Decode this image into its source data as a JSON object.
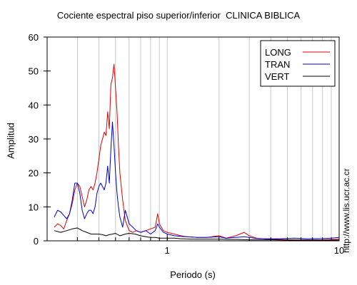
{
  "chart_data": {
    "type": "line",
    "title": "Cociente espectral piso superior/inferior  CLINICA BIBLICA",
    "xlabel": "Periodo (s)",
    "ylabel": "Amplitud",
    "x_scale": "log",
    "xlim": [
      0.2,
      10
    ],
    "ylim": [
      0,
      60
    ],
    "x_ticks": [
      1,
      10
    ],
    "x_tick_labels": [
      "1",
      "10"
    ],
    "y_ticks": [
      0,
      10,
      20,
      30,
      40,
      50,
      60
    ],
    "grid": true,
    "legend_position": "top-right",
    "series": [
      {
        "name": "LONG",
        "color": "#e00000",
        "x": [
          0.22,
          0.23,
          0.24,
          0.25,
          0.26,
          0.27,
          0.28,
          0.29,
          0.3,
          0.31,
          0.32,
          0.33,
          0.34,
          0.35,
          0.36,
          0.37,
          0.38,
          0.39,
          0.4,
          0.41,
          0.42,
          0.43,
          0.44,
          0.45,
          0.46,
          0.47,
          0.48,
          0.49,
          0.5,
          0.51,
          0.52,
          0.53,
          0.55,
          0.57,
          0.6,
          0.63,
          0.66,
          0.7,
          0.75,
          0.8,
          0.85,
          0.88,
          0.9,
          0.95,
          1.0,
          1.1,
          1.2,
          1.3,
          1.5,
          1.7,
          2.0,
          2.2,
          2.5,
          2.8,
          3.0,
          3.3,
          3.8,
          4.5,
          5.5,
          6.5,
          8.0,
          9.0,
          10.0
        ],
        "y": [
          4,
          5,
          4.5,
          3.5,
          6,
          8,
          11,
          15,
          17,
          16,
          13,
          10,
          12,
          15,
          16,
          15,
          17,
          20,
          24,
          28,
          30,
          32,
          31,
          38,
          33,
          46,
          48,
          52,
          45,
          38,
          28,
          20,
          12,
          6,
          3,
          2.5,
          3,
          2.5,
          3,
          3.5,
          4,
          8,
          5,
          3,
          2.5,
          2,
          1.5,
          1.2,
          1,
          1,
          1.5,
          0.8,
          1.5,
          2.5,
          1.5,
          0.8,
          0.5,
          0.4,
          0.3,
          0.3,
          0.3,
          0.4,
          0.5
        ]
      },
      {
        "name": "TRAN",
        "color": "#0000d0",
        "x": [
          0.22,
          0.23,
          0.24,
          0.25,
          0.26,
          0.27,
          0.28,
          0.29,
          0.3,
          0.31,
          0.32,
          0.33,
          0.34,
          0.35,
          0.36,
          0.37,
          0.38,
          0.39,
          0.4,
          0.41,
          0.42,
          0.43,
          0.44,
          0.45,
          0.46,
          0.47,
          0.48,
          0.49,
          0.5,
          0.51,
          0.52,
          0.53,
          0.55,
          0.57,
          0.6,
          0.63,
          0.66,
          0.7,
          0.75,
          0.8,
          0.85,
          0.88,
          0.9,
          0.95,
          1.0,
          1.1,
          1.2,
          1.3,
          1.5,
          1.7,
          2.0,
          2.2,
          2.5,
          2.8,
          3.0,
          3.3,
          3.8,
          4.5,
          5.5,
          6.5,
          8.0,
          9.0,
          10.0
        ],
        "y": [
          7,
          9,
          8.5,
          7.5,
          6.5,
          8,
          12,
          17,
          17,
          14,
          9,
          6.5,
          8,
          9,
          9,
          8,
          10,
          14,
          16,
          17,
          16,
          15,
          17,
          22,
          17,
          27,
          35,
          28,
          20,
          14,
          10,
          7,
          4,
          9,
          5,
          4,
          3,
          2.5,
          3,
          2,
          3,
          5,
          4,
          2.5,
          2,
          1.5,
          1.3,
          1.2,
          1,
          1,
          1.2,
          0.8,
          1,
          1.2,
          1,
          0.7,
          0.6,
          0.6,
          0.8,
          0.6,
          0.7,
          0.8,
          1
        ]
      },
      {
        "name": "VERT",
        "color": "#000000",
        "x": [
          0.22,
          0.24,
          0.26,
          0.28,
          0.3,
          0.32,
          0.34,
          0.36,
          0.38,
          0.4,
          0.42,
          0.44,
          0.46,
          0.48,
          0.5,
          0.53,
          0.57,
          0.6,
          0.65,
          0.7,
          0.75,
          0.8,
          0.85,
          0.9,
          1.0,
          1.1,
          1.2,
          1.4,
          1.6,
          1.8,
          2.0,
          2.3,
          2.6,
          3.0,
          3.5,
          4.0,
          5.0,
          6.0,
          7.0,
          8.0,
          9.0,
          10.0
        ],
        "y": [
          3,
          2.5,
          3,
          3.5,
          3.8,
          3,
          2.5,
          2,
          2,
          2,
          1.8,
          1.5,
          1.8,
          2,
          2.2,
          1.5,
          2,
          2.2,
          2,
          1.5,
          1.2,
          1,
          1,
          0.8,
          0.8,
          0.8,
          0.6,
          0.5,
          0.5,
          0.5,
          0.5,
          0.4,
          0.4,
          0.3,
          0.3,
          0.3,
          0.2,
          0.2,
          0.2,
          0.2,
          0.2,
          0.2
        ]
      }
    ]
  },
  "watermark": "http://www.lis.ucr.ac.cr"
}
